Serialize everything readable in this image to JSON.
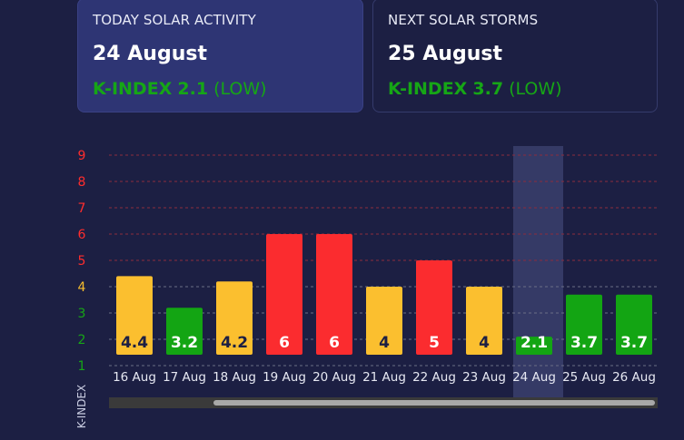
{
  "cards": {
    "today": {
      "title": "TODAY SOLAR ACTIVITY",
      "date": "24 August",
      "k_prefix": "K-INDEX",
      "k_value": "2.1",
      "k_level": "(LOW)"
    },
    "next": {
      "title": "NEXT SOLAR STORMS",
      "date": "25 August",
      "k_prefix": "K-INDEX",
      "k_value": "3.7",
      "k_level": "(LOW)"
    }
  },
  "chart_data": {
    "type": "bar",
    "ylabel": "K-INDEX",
    "ylim": [
      0,
      9
    ],
    "yticks": [
      1,
      2,
      3,
      4,
      5,
      6,
      7,
      8,
      9
    ],
    "ytick_colors": {
      "1": "#16a616",
      "2": "#16a616",
      "3": "#16a616",
      "4": "#f7bd2e",
      "5": "#ff2d2d",
      "6": "#ff2d2d",
      "7": "#ff2d2d",
      "8": "#ff2d2d",
      "9": "#ff2d2d"
    },
    "categories": [
      "16 Aug",
      "17 Aug",
      "18 Aug",
      "19 Aug",
      "20 Aug",
      "21 Aug",
      "22 Aug",
      "23 Aug",
      "24 Aug",
      "25 Aug",
      "26 Aug"
    ],
    "values": [
      4.4,
      3.2,
      4.2,
      6,
      6,
      4,
      5,
      4,
      2.1,
      3.7,
      3.7
    ],
    "labels": [
      "4.4",
      "3.2",
      "4.2",
      "6",
      "6",
      "4",
      "5",
      "4",
      "2.1",
      "3.7",
      "3.7"
    ],
    "highlight_index": 8,
    "colors": {
      "low": "#13a513",
      "moderate": "#fbbf2f",
      "high": "#fb2c2f"
    }
  },
  "theme": {
    "background": "#1c1f43",
    "grid_red": "#8b2c3e",
    "grid_gray": "#6a6f86",
    "label_dark": "#1c1f43",
    "label_light": "#ffffff"
  }
}
